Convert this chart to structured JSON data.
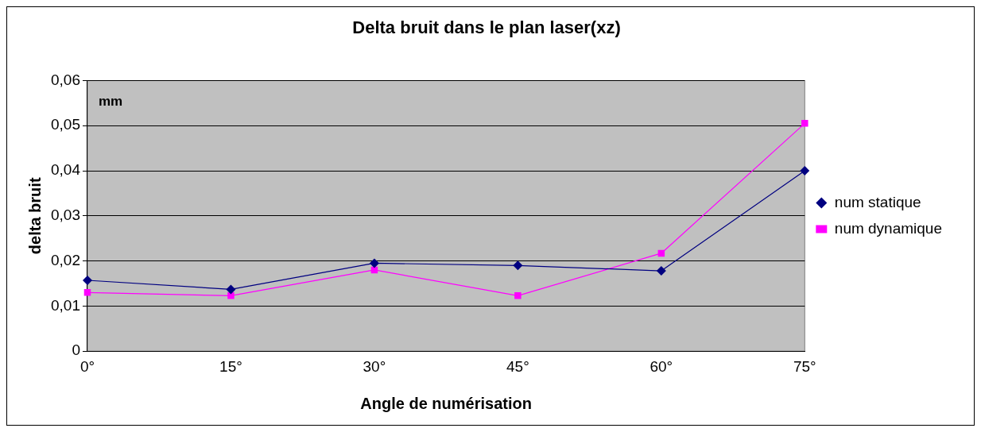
{
  "chart_data": {
    "type": "line",
    "title": "Delta bruit dans le plan laser(xz)",
    "xlabel": "Angle de numérisation",
    "ylabel": "delta bruit",
    "annotations": [
      "mm"
    ],
    "categories": [
      "0°",
      "15°",
      "30°",
      "45°",
      "60°",
      "75°"
    ],
    "series": [
      {
        "name": "num statique",
        "color": "#000080",
        "marker": "diamond",
        "values": [
          0.0157,
          0.0137,
          0.0195,
          0.019,
          0.0178,
          0.04
        ]
      },
      {
        "name": "num dynamique",
        "color": "#ff00ff",
        "marker": "square",
        "values": [
          0.013,
          0.0123,
          0.018,
          0.0123,
          0.0217,
          0.0505
        ]
      }
    ],
    "ylim": [
      0,
      0.06
    ],
    "yticks": [
      0,
      {
        "value": 0.01,
        "label": "0,01"
      },
      {
        "value": 0.02,
        "label": "0,02"
      },
      {
        "value": 0.03,
        "label": "0,03"
      },
      {
        "value": 0.04,
        "label": "0,04"
      },
      {
        "value": 0.05,
        "label": "0,05"
      },
      {
        "value": 0.06,
        "label": "0,06"
      }
    ],
    "grid": "y",
    "legend": "right",
    "line_style": "solid"
  }
}
